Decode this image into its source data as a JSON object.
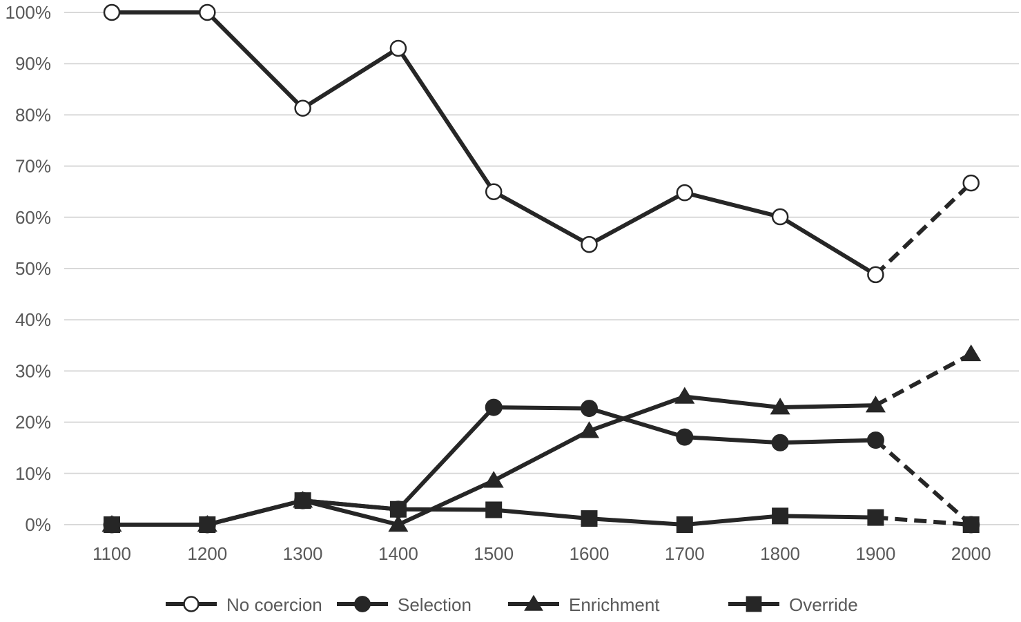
{
  "chart_data": {
    "type": "line",
    "title": "",
    "xlabel": "",
    "ylabel": "",
    "categories": [
      "1100",
      "1200",
      "1300",
      "1400",
      "1500",
      "1600",
      "1700",
      "1800",
      "1900",
      "2000"
    ],
    "y_tick_labels": [
      "0%",
      "10%",
      "20%",
      "30%",
      "40%",
      "50%",
      "60%",
      "70%",
      "80%",
      "90%",
      "100%"
    ],
    "ylim": [
      0,
      100
    ],
    "grid": true,
    "legend_position": "bottom",
    "dashed_last_segment": true,
    "series": [
      {
        "name": "No coercion",
        "marker": "circle-open",
        "values": [
          100,
          100,
          81.3,
          93,
          65,
          54.7,
          64.8,
          60.1,
          48.8,
          66.7
        ]
      },
      {
        "name": "Selection",
        "marker": "circle-filled",
        "values": [
          0,
          0,
          4.7,
          3,
          22.9,
          22.7,
          17.1,
          16,
          16.5,
          0
        ]
      },
      {
        "name": "Enrichment",
        "marker": "triangle-filled",
        "values": [
          0,
          0,
          4.7,
          0,
          8.6,
          18.3,
          25,
          22.9,
          23.3,
          33.3
        ]
      },
      {
        "name": "Override",
        "marker": "square-filled",
        "values": [
          0,
          0,
          4.7,
          3,
          2.9,
          1.2,
          0,
          1.7,
          1.4,
          0
        ]
      }
    ],
    "colors": {
      "line": "#262626",
      "grid": "#d9d9d9",
      "text": "#595959",
      "open_fill": "#ffffff"
    }
  }
}
